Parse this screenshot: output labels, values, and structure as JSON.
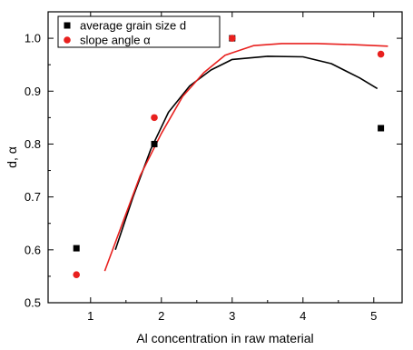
{
  "chart_data": {
    "type": "scatter",
    "xlabel": "Al concentration in raw material",
    "ylabel": "d, α",
    "xlim": [
      0.4,
      5.4
    ],
    "ylim": [
      0.5,
      1.05
    ],
    "x_ticks": [
      "1",
      "2",
      "3",
      "4",
      "5"
    ],
    "y_ticks": [
      "0.5",
      "0.6",
      "0.7",
      "0.8",
      "0.9",
      "1.0"
    ],
    "legend_position": "top-left",
    "grid": false,
    "series": [
      {
        "name": "average grain size d",
        "marker": "square",
        "color": "#000000",
        "points": [
          {
            "x": 0.8,
            "y": 0.603
          },
          {
            "x": 1.9,
            "y": 0.8
          },
          {
            "x": 3.0,
            "y": 1.0
          },
          {
            "x": 5.1,
            "y": 0.83
          }
        ],
        "fit": [
          {
            "x": 1.35,
            "y": 0.6
          },
          {
            "x": 1.6,
            "y": 0.7
          },
          {
            "x": 1.85,
            "y": 0.79
          },
          {
            "x": 2.1,
            "y": 0.86
          },
          {
            "x": 2.4,
            "y": 0.91
          },
          {
            "x": 2.7,
            "y": 0.94
          },
          {
            "x": 3.0,
            "y": 0.96
          },
          {
            "x": 3.5,
            "y": 0.966
          },
          {
            "x": 4.0,
            "y": 0.965
          },
          {
            "x": 4.4,
            "y": 0.952
          },
          {
            "x": 4.8,
            "y": 0.925
          },
          {
            "x": 5.05,
            "y": 0.905
          }
        ]
      },
      {
        "name": "slope angle α",
        "marker": "circle",
        "color": "#e8201e",
        "points": [
          {
            "x": 0.8,
            "y": 0.553
          },
          {
            "x": 1.9,
            "y": 0.85
          },
          {
            "x": 3.0,
            "y": 1.0
          },
          {
            "x": 5.1,
            "y": 0.97
          }
        ],
        "fit": [
          {
            "x": 1.2,
            "y": 0.56
          },
          {
            "x": 1.45,
            "y": 0.65
          },
          {
            "x": 1.7,
            "y": 0.74
          },
          {
            "x": 2.0,
            "y": 0.82
          },
          {
            "x": 2.3,
            "y": 0.89
          },
          {
            "x": 2.6,
            "y": 0.935
          },
          {
            "x": 2.9,
            "y": 0.968
          },
          {
            "x": 3.3,
            "y": 0.986
          },
          {
            "x": 3.7,
            "y": 0.99
          },
          {
            "x": 4.2,
            "y": 0.99
          },
          {
            "x": 4.7,
            "y": 0.988
          },
          {
            "x": 5.2,
            "y": 0.985
          }
        ]
      }
    ]
  }
}
